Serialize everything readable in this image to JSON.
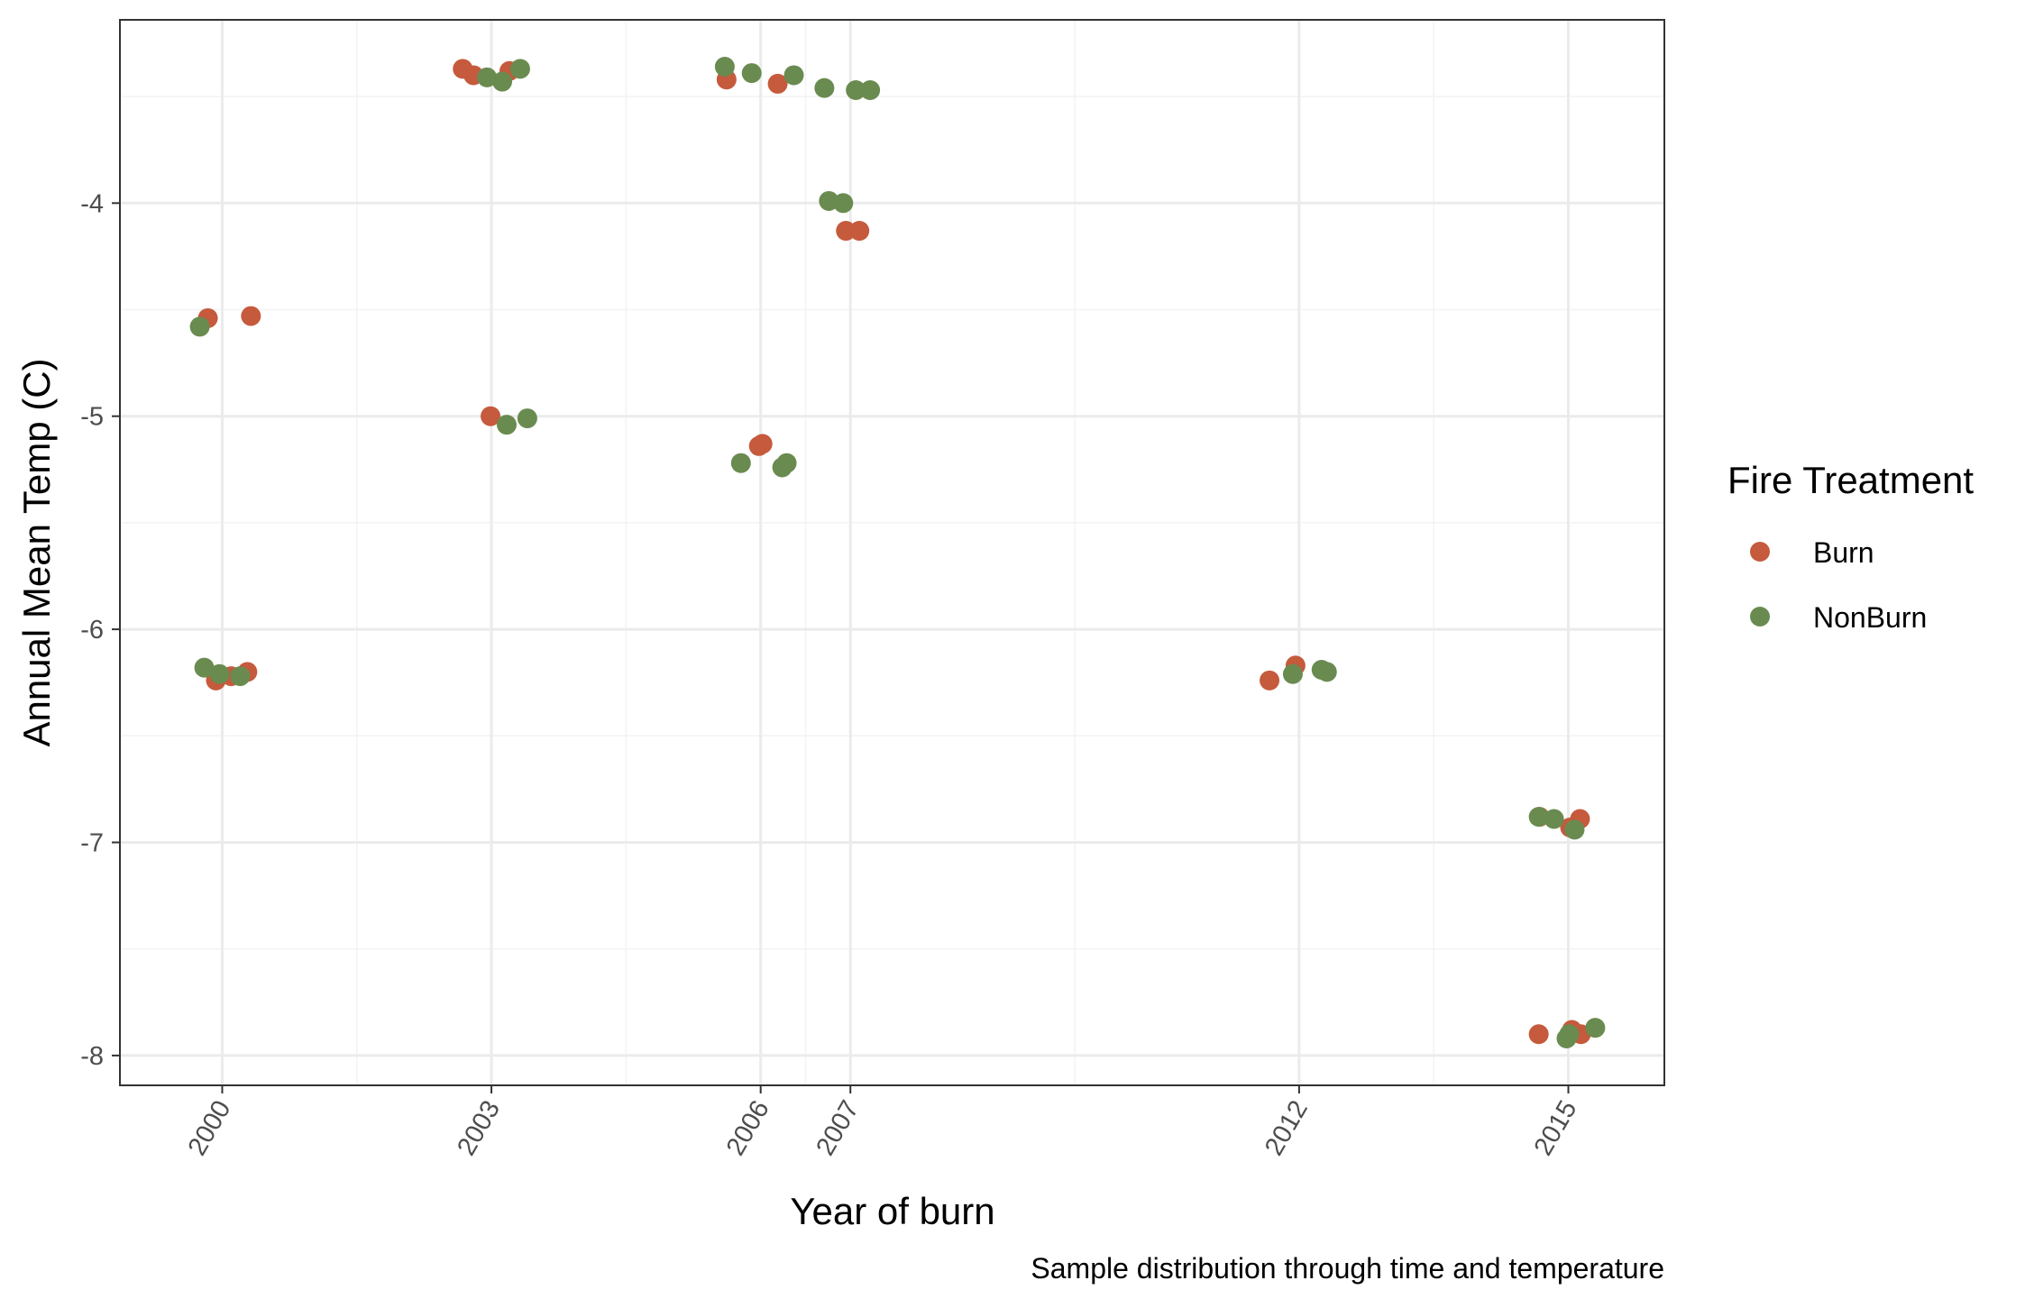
{
  "chart_data": {
    "type": "scatter",
    "title": "",
    "xlabel": "Year of burn",
    "ylabel": "Annual Mean Temp (C)",
    "caption": "Sample distribution through time and temperature",
    "x_ticks": [
      "2000",
      "2003",
      "2006",
      "2007",
      "2012",
      "2015"
    ],
    "y_ticks": [
      "-4",
      "-5",
      "-6",
      "-7",
      "-8"
    ],
    "xlim": [
      1998.86,
      2016.07
    ],
    "ylim": [
      -8.14,
      -3.14
    ],
    "grid": true,
    "legend": {
      "title": "Fire Treatment",
      "position": "right",
      "entries": [
        "Burn",
        "NonBurn"
      ]
    },
    "colors": {
      "Burn": "#c55a3c",
      "NonBurn": "#6a8b50",
      "panel_border": "#333333",
      "grid_major": "#ebebeb",
      "grid_minor": "#f3f3f3"
    },
    "series": [
      {
        "name": "Burn",
        "points": [
          {
            "x": 1999.84,
            "y": -4.54
          },
          {
            "x": 2000.32,
            "y": -4.53
          },
          {
            "x": 1999.93,
            "y": -6.24
          },
          {
            "x": 2000.1,
            "y": -6.22
          },
          {
            "x": 2000.28,
            "y": -6.2
          },
          {
            "x": 2002.68,
            "y": -3.37
          },
          {
            "x": 2002.8,
            "y": -3.4
          },
          {
            "x": 2003.2,
            "y": -3.38
          },
          {
            "x": 2002.99,
            "y": -5.0
          },
          {
            "x": 2005.62,
            "y": -3.42
          },
          {
            "x": 2006.19,
            "y": -3.44
          },
          {
            "x": 2005.98,
            "y": -5.14
          },
          {
            "x": 2006.02,
            "y": -5.13
          },
          {
            "x": 2006.95,
            "y": -4.13
          },
          {
            "x": 2007.1,
            "y": -4.13
          },
          {
            "x": 2011.67,
            "y": -6.24
          },
          {
            "x": 2011.96,
            "y": -6.17
          },
          {
            "x": 2014.68,
            "y": -6.88
          },
          {
            "x": 2015.02,
            "y": -6.93
          },
          {
            "x": 2015.13,
            "y": -6.89
          },
          {
            "x": 2014.67,
            "y": -7.9
          },
          {
            "x": 2015.04,
            "y": -7.88
          },
          {
            "x": 2015.14,
            "y": -7.9
          }
        ]
      },
      {
        "name": "NonBurn",
        "points": [
          {
            "x": 1999.75,
            "y": -4.58
          },
          {
            "x": 1999.8,
            "y": -6.18
          },
          {
            "x": 1999.97,
            "y": -6.21
          },
          {
            "x": 2000.2,
            "y": -6.22
          },
          {
            "x": 2002.95,
            "y": -3.41
          },
          {
            "x": 2003.12,
            "y": -3.43
          },
          {
            "x": 2003.32,
            "y": -3.37
          },
          {
            "x": 2003.17,
            "y": -5.04
          },
          {
            "x": 2003.4,
            "y": -5.01
          },
          {
            "x": 2005.6,
            "y": -3.36
          },
          {
            "x": 2005.9,
            "y": -3.39
          },
          {
            "x": 2006.37,
            "y": -3.4
          },
          {
            "x": 2006.71,
            "y": -3.46
          },
          {
            "x": 2007.06,
            "y": -3.47
          },
          {
            "x": 2007.22,
            "y": -3.47
          },
          {
            "x": 2006.76,
            "y": -3.99
          },
          {
            "x": 2006.92,
            "y": -4.0
          },
          {
            "x": 2005.78,
            "y": -5.22
          },
          {
            "x": 2006.24,
            "y": -5.24
          },
          {
            "x": 2006.29,
            "y": -5.22
          },
          {
            "x": 2011.93,
            "y": -6.21
          },
          {
            "x": 2012.25,
            "y": -6.19
          },
          {
            "x": 2012.31,
            "y": -6.2
          },
          {
            "x": 2014.67,
            "y": -6.88
          },
          {
            "x": 2014.84,
            "y": -6.89
          },
          {
            "x": 2015.07,
            "y": -6.94
          },
          {
            "x": 2014.98,
            "y": -7.92
          },
          {
            "x": 2015.01,
            "y": -7.9
          },
          {
            "x": 2015.3,
            "y": -7.87
          }
        ]
      }
    ]
  }
}
